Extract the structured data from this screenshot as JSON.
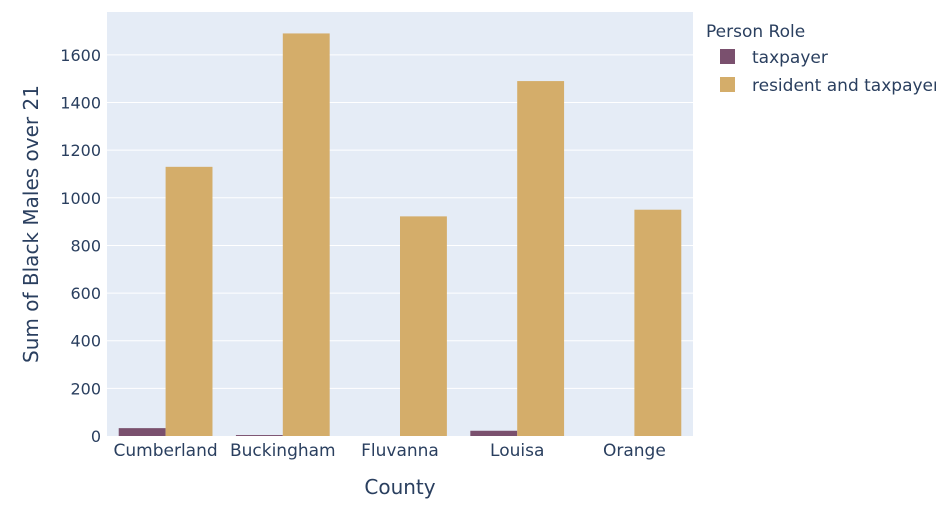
{
  "chart_data": {
    "type": "bar",
    "categories": [
      "Cumberland",
      "Buckingham",
      "Fluvanna",
      "Louisa",
      "Orange"
    ],
    "series": [
      {
        "name": "taxpayer",
        "values": [
          33,
          4,
          0,
          22,
          0
        ],
        "color": "#7a506e"
      },
      {
        "name": "resident and taxpayer",
        "values": [
          1130,
          1690,
          922,
          1490,
          950
        ],
        "color": "#d4ad6a"
      }
    ],
    "xlabel": "County",
    "ylabel": "Sum of Black Males over 21",
    "ylim": [
      0,
      1780
    ],
    "yticks": [
      0,
      200,
      400,
      600,
      800,
      1000,
      1200,
      1400,
      1600
    ],
    "legend_title": "Person Role",
    "legend_position": "top-right, outside plot",
    "grid": true,
    "barmode": "group",
    "colors": {
      "plot_background": "#e5ecf6",
      "gridline": "#ffffff",
      "text": "#2a3f5f"
    }
  }
}
